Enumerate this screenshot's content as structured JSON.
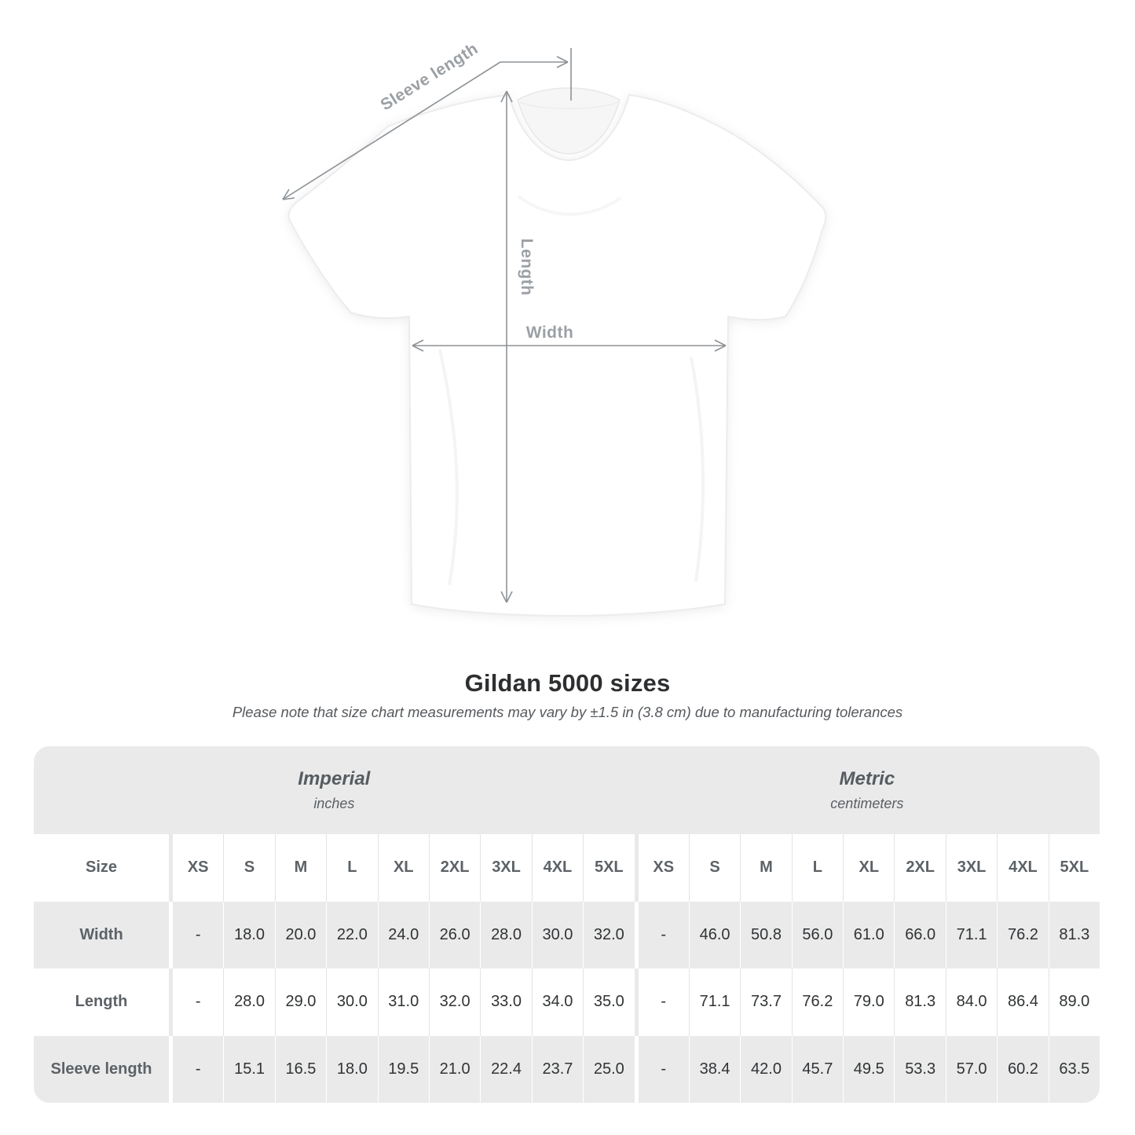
{
  "title": "Gildan 5000 sizes",
  "subtitle": "Please note that size chart measurements may vary by ±1.5 in (3.8 cm) due to manufacturing tolerances",
  "shirt_diagram": {
    "labels": {
      "sleeve_length": "Sleeve length",
      "length": "Length",
      "width": "Width"
    }
  },
  "colors": {
    "table_band_gray": "#eaeaea",
    "label_text": "#5d6267",
    "value_text": "#303335",
    "annotation_gray": "#8d9296",
    "title_text": "#2d2f31"
  },
  "chart_data": {
    "type": "table",
    "title": "Gildan 5000 sizes",
    "note": "Please note that size chart measurements may vary by ±1.5 in (3.8 cm) due to manufacturing tolerances",
    "corner_label": "Size",
    "unit_systems": [
      {
        "name": "Imperial",
        "unit": "inches",
        "sizes": [
          "XS",
          "S",
          "M",
          "L",
          "XL",
          "2XL",
          "3XL",
          "4XL",
          "5XL"
        ],
        "rows": [
          {
            "label": "Width",
            "values": [
              "-",
              "18.0",
              "20.0",
              "22.0",
              "24.0",
              "26.0",
              "28.0",
              "30.0",
              "32.0"
            ]
          },
          {
            "label": "Length",
            "values": [
              "-",
              "28.0",
              "29.0",
              "30.0",
              "31.0",
              "32.0",
              "33.0",
              "34.0",
              "35.0"
            ]
          },
          {
            "label": "Sleeve length",
            "values": [
              "-",
              "15.1",
              "16.5",
              "18.0",
              "19.5",
              "21.0",
              "22.4",
              "23.7",
              "25.0"
            ]
          }
        ]
      },
      {
        "name": "Metric",
        "unit": "centimeters",
        "sizes": [
          "XS",
          "S",
          "M",
          "L",
          "XL",
          "2XL",
          "3XL",
          "4XL",
          "5XL"
        ],
        "rows": [
          {
            "label": "Width",
            "values": [
              "-",
              "46.0",
              "50.8",
              "56.0",
              "61.0",
              "66.0",
              "71.1",
              "76.2",
              "81.3"
            ]
          },
          {
            "label": "Length",
            "values": [
              "-",
              "71.1",
              "73.7",
              "76.2",
              "79.0",
              "81.3",
              "84.0",
              "86.4",
              "89.0"
            ]
          },
          {
            "label": "Sleeve length",
            "values": [
              "-",
              "38.4",
              "42.0",
              "45.7",
              "49.5",
              "53.3",
              "57.0",
              "60.2",
              "63.5"
            ]
          }
        ]
      }
    ]
  }
}
